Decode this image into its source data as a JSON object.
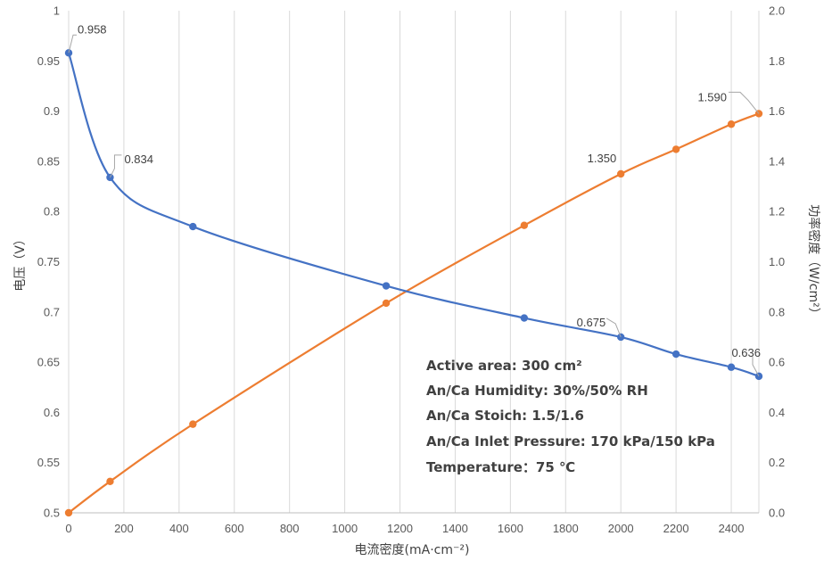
{
  "chart_data": {
    "type": "line",
    "xlabel": "电流密度(mA·cm⁻²)",
    "ylabel": "电压（V）",
    "y2label": "功率密度（W/cm²）",
    "xlim": [
      0,
      2500
    ],
    "ylim": [
      0.5,
      1
    ],
    "y2lim": [
      0,
      2
    ],
    "x_ticks": [
      0,
      200,
      400,
      600,
      800,
      1000,
      1200,
      1400,
      1600,
      1800,
      2000,
      2200,
      2400
    ],
    "y_ticks": [
      "0.5",
      "0.55",
      "0.6",
      "0.65",
      "0.7",
      "0.75",
      "0.8",
      "0.85",
      "0.9",
      "0.95",
      "1"
    ],
    "y2_ticks": [
      "0.0",
      "0.2",
      "0.4",
      "0.6",
      "0.8",
      "1.0",
      "1.2",
      "1.4",
      "1.6",
      "1.8",
      "2.0"
    ],
    "grid": "vertical",
    "series": [
      {
        "axis": "left",
        "color": "#4472C4",
        "x": [
          0,
          150,
          450,
          1150,
          1650,
          2000,
          2200,
          2400,
          2500
        ],
        "y": [
          0.958,
          0.834,
          0.785,
          0.726,
          0.694,
          0.675,
          0.658,
          0.645,
          0.636
        ]
      },
      {
        "axis": "right",
        "color": "#ED7D31",
        "x": [
          0,
          150,
          450,
          1150,
          1650,
          2000,
          2200,
          2400,
          2500
        ],
        "y": [
          0.0,
          0.125,
          0.353,
          0.835,
          1.145,
          1.35,
          1.448,
          1.548,
          1.59
        ]
      }
    ],
    "data_labels": [
      {
        "series": 0,
        "index": 0,
        "text": "0.958"
      },
      {
        "series": 0,
        "index": 1,
        "text": "0.834"
      },
      {
        "series": 0,
        "index": 5,
        "text": "0.675"
      },
      {
        "series": 0,
        "index": 8,
        "text": "0.636"
      },
      {
        "series": 1,
        "index": 5,
        "text": "1.350"
      },
      {
        "series": 1,
        "index": 8,
        "text": "1.590"
      }
    ],
    "annotations": [
      "Active area: 300 cm²",
      "An/Ca Humidity: 30%/50% RH",
      "An/Ca Stoich: 1.5/1.6",
      "An/Ca Inlet Pressure: 170 kPa/150 kPa",
      "Temperature：75 ℃"
    ]
  }
}
